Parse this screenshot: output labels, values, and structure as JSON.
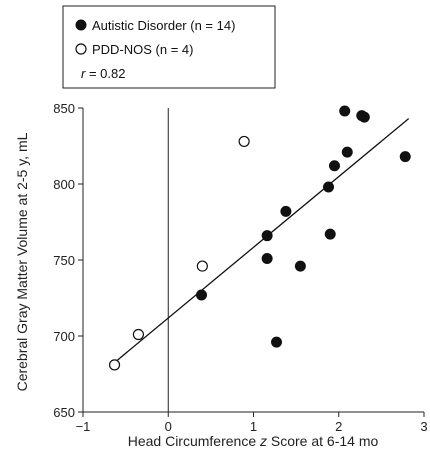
{
  "chart_data": {
    "type": "scatter",
    "xlabel_prefix": "Head Circumference ",
    "xlabel_italic": "z",
    "xlabel_suffix": " Score at 6-14 mo",
    "ylabel": "Cerebral Gray Matter Volume at 2-5 y, mL",
    "xlim": [
      -1,
      3
    ],
    "ylim": [
      650,
      850
    ],
    "x_ticks": [
      -1,
      0,
      1,
      2,
      3
    ],
    "y_ticks": [
      650,
      700,
      750,
      800,
      850
    ],
    "x_tick_labels": [
      "−1",
      "0",
      "1",
      "2",
      "3"
    ],
    "y_tick_labels": [
      "650",
      "700",
      "750",
      "800",
      "850"
    ],
    "legend": {
      "placement": "top-left",
      "entries": [
        {
          "marker": "filled-circle",
          "label": "Autistic Disorder (n = 14)"
        },
        {
          "marker": "open-circle",
          "label": "PDD-NOS (n = 4)"
        }
      ],
      "stat_italic": "r",
      "stat_rest": " = 0.82"
    },
    "vertical_reference_line_x": 0,
    "regression_line": {
      "x": [
        -0.62,
        2.82
      ],
      "y": [
        683,
        843
      ]
    },
    "series": [
      {
        "name": "Autistic Disorder (n = 14)",
        "marker": "filled",
        "points": [
          {
            "x": 0.39,
            "y": 727
          },
          {
            "x": 1.16,
            "y": 766
          },
          {
            "x": 1.16,
            "y": 751
          },
          {
            "x": 1.27,
            "y": 696
          },
          {
            "x": 1.38,
            "y": 782
          },
          {
            "x": 1.55,
            "y": 746
          },
          {
            "x": 1.88,
            "y": 798
          },
          {
            "x": 1.9,
            "y": 767
          },
          {
            "x": 1.95,
            "y": 812
          },
          {
            "x": 2.07,
            "y": 848
          },
          {
            "x": 2.1,
            "y": 821
          },
          {
            "x": 2.3,
            "y": 844
          },
          {
            "x": 2.78,
            "y": 818
          },
          {
            "x": 2.27,
            "y": 845
          }
        ]
      },
      {
        "name": "PDD-NOS (n = 4)",
        "marker": "open",
        "points": [
          {
            "x": -0.63,
            "y": 681
          },
          {
            "x": -0.35,
            "y": 701
          },
          {
            "x": 0.4,
            "y": 746
          },
          {
            "x": 0.89,
            "y": 828
          }
        ]
      }
    ]
  }
}
